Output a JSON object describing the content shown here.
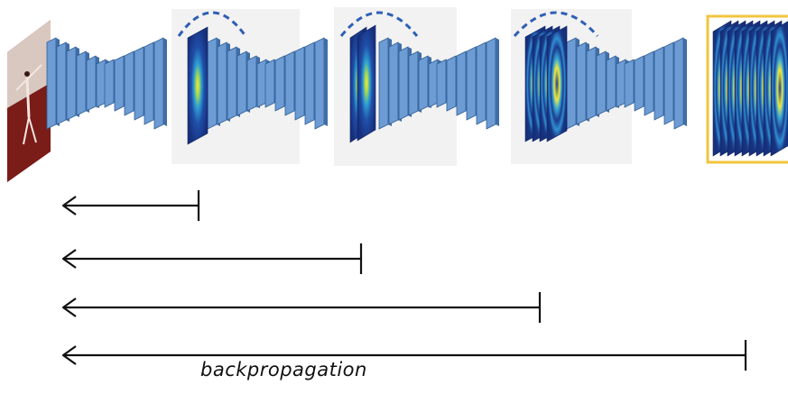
{
  "diagram": {
    "caption": "backpropagation",
    "stage_count": 4,
    "backprop_arrow_count": 4,
    "skip_connection_count": 3,
    "highlighted_stage": 4,
    "colors": {
      "layer_face": "#6d9bd3",
      "layer_side": "#3f6ea7",
      "layer_edge": "#2f5d94",
      "skip_arc": "#2f5fb5",
      "highlight_box": "#f2c53d",
      "arrow": "#111111",
      "heatmap_bg": "#1c3c8f",
      "heatmap_ring": "#2f8fd0",
      "heatmap_core": "#e9e13a"
    },
    "icons": [
      "input-photo-icon",
      "heatmap-icon",
      "backprop-arrow-icon",
      "skip-connection-icon"
    ]
  }
}
